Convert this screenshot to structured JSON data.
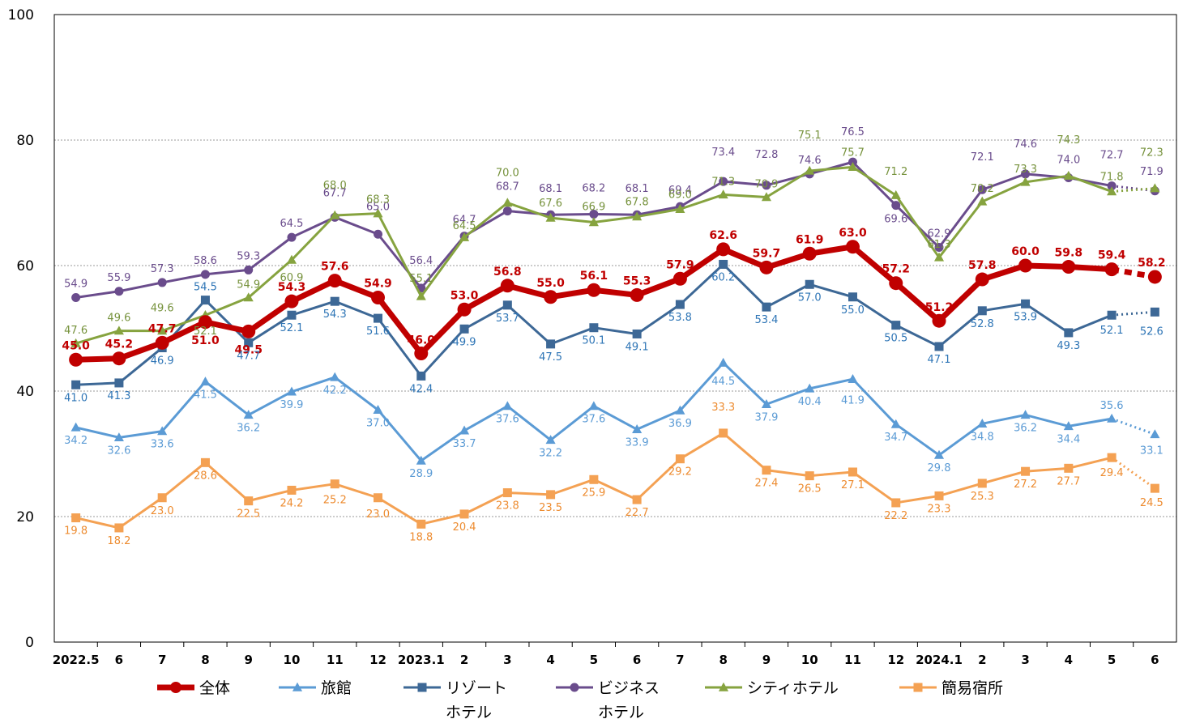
{
  "chart_data": {
    "type": "line",
    "title": "",
    "xlabel": "",
    "ylabel": "",
    "ylim": [
      0,
      100
    ],
    "yticks": [
      0,
      20,
      40,
      60,
      80,
      100
    ],
    "grid": "horizontal-dotted",
    "legend_position": "bottom",
    "categories": [
      "2022.5",
      "6",
      "7",
      "8",
      "9",
      "10",
      "11",
      "12",
      "2023.1",
      "2",
      "3",
      "4",
      "5",
      "6",
      "7",
      "8",
      "9",
      "10",
      "11",
      "12",
      "2024.1",
      "2",
      "3",
      "4",
      "5",
      "6"
    ],
    "series": [
      {
        "id": "s-all",
        "name": "全体",
        "color": "#c00000",
        "marker": "circle",
        "emphasis": true,
        "values": [
          45.0,
          45.2,
          47.7,
          51.0,
          49.5,
          54.3,
          57.6,
          54.9,
          46.0,
          53.0,
          56.8,
          55.0,
          56.1,
          55.3,
          57.9,
          62.6,
          59.7,
          61.9,
          63.0,
          57.2,
          51.2,
          57.8,
          60.0,
          59.8,
          59.4,
          58.2
        ],
        "labels": [
          "45.0",
          "45.2",
          "47.7",
          "51.0",
          "49.5",
          "54.3",
          "57.6",
          "54.9",
          "46.0",
          "53.0",
          "56.8",
          "55.0",
          "56.1",
          "55.3",
          "57.9",
          "62.6",
          "59.7",
          "61.9",
          "63.0",
          "57.2",
          "51.2",
          "57.8",
          "60.0",
          "59.8",
          "59.4",
          "58.2"
        ]
      },
      {
        "id": "s-ryokan",
        "name": "旅館",
        "color": "#5b9bd5",
        "marker": "triangle",
        "values": [
          34.2,
          32.6,
          33.6,
          41.5,
          36.2,
          39.9,
          42.2,
          37.0,
          28.9,
          33.7,
          37.6,
          32.2,
          37.6,
          33.9,
          36.9,
          44.5,
          37.9,
          40.4,
          41.9,
          34.7,
          29.8,
          34.8,
          36.2,
          34.4,
          35.6,
          33.1
        ],
        "labels": [
          "34.2",
          "32.6",
          "33.6",
          "41.5",
          "36.2",
          "39.9",
          "42.2",
          "37.0",
          "28.9",
          "33.7",
          "37.6",
          "32.2",
          "37.6",
          "33.9",
          "36.9",
          "44.5",
          "37.9",
          "40.4",
          "41.9",
          "34.7",
          "29.8",
          "34.8",
          "36.2",
          "34.4",
          "35.6",
          "33.1"
        ]
      },
      {
        "id": "s-resort",
        "name": "リゾート ホテル",
        "name_lines": [
          "リゾート",
          "ホテル"
        ],
        "color": "#3d6896",
        "label_color": "#2e75b6",
        "marker": "square",
        "values": [
          41.0,
          41.3,
          46.9,
          54.5,
          47.7,
          52.1,
          54.3,
          51.6,
          42.4,
          49.9,
          53.7,
          47.5,
          50.1,
          49.1,
          53.8,
          60.2,
          53.4,
          57.0,
          55.0,
          50.5,
          47.1,
          52.8,
          53.9,
          49.3,
          52.1,
          52.6
        ],
        "labels": [
          "41.0",
          "41.3",
          "46.9",
          "54.5",
          "47.7",
          "52.1",
          "54.3",
          "51.6",
          "42.4",
          "49.9",
          "53.7",
          "47.5",
          "50.1",
          "49.1",
          "53.8",
          "60.2",
          "53.4",
          "57.0",
          "55.0",
          "50.5",
          "47.1",
          "52.8",
          "53.9",
          "49.3",
          "52.1",
          "52.6"
        ]
      },
      {
        "id": "s-business",
        "name": "ビジネス ホテル",
        "name_lines": [
          "ビジネス",
          "ホテル"
        ],
        "color": "#6a4c8c",
        "label_color": "#6a4c8c",
        "marker": "circle",
        "values": [
          54.9,
          55.9,
          57.3,
          58.6,
          59.3,
          64.5,
          67.7,
          65.0,
          56.4,
          64.7,
          68.7,
          68.1,
          68.2,
          68.1,
          69.4,
          73.4,
          72.8,
          74.6,
          76.5,
          69.6,
          62.9,
          72.1,
          74.6,
          74.0,
          72.7,
          71.9
        ],
        "labels": [
          "54.9",
          "55.9",
          "57.3",
          "58.6",
          "59.3",
          "64.5",
          "67.7",
          "65.0",
          "56.4",
          "64.7",
          "68.7",
          "68.1",
          "68.2",
          "68.1",
          "69.4",
          "73.4",
          "72.8",
          "74.6",
          "76.5",
          "69.6",
          "62.9",
          "72.1",
          "74.6",
          "74.0",
          "72.7",
          "71.9"
        ]
      },
      {
        "id": "s-city",
        "name": "シティホテル",
        "color": "#86a33f",
        "label_color": "#76923c",
        "marker": "triangle",
        "values": [
          47.6,
          49.6,
          49.6,
          52.1,
          54.9,
          60.9,
          68.0,
          68.3,
          55.1,
          64.5,
          70.0,
          67.6,
          66.9,
          67.8,
          69.0,
          71.3,
          70.9,
          75.1,
          75.7,
          71.2,
          61.3,
          70.2,
          73.3,
          74.3,
          71.8,
          72.3
        ],
        "labels": [
          "47.6",
          "49.6",
          "49.6",
          "52.1",
          "54.9",
          "60.9",
          "68.0",
          "68.3",
          "55.1",
          "64.5",
          "70.0",
          "67.6",
          "66.9",
          "67.8",
          "69.0",
          "71.3",
          "70.9",
          "75.1",
          "75.7",
          "71.2",
          "61.3",
          "70.2",
          "73.3",
          "74.3",
          "71.8",
          "72.3"
        ]
      },
      {
        "id": "s-simple",
        "name": "簡易宿所",
        "color": "#f4a153",
        "label_color": "#ed8b2f",
        "marker": "square",
        "values": [
          19.8,
          18.2,
          23.0,
          28.6,
          22.5,
          24.2,
          25.2,
          23.0,
          18.8,
          20.4,
          23.8,
          23.5,
          25.9,
          22.7,
          29.2,
          33.3,
          27.4,
          26.5,
          27.1,
          22.2,
          23.3,
          25.3,
          27.2,
          27.7,
          29.4,
          24.5
        ],
        "labels": [
          "19.8",
          "18.2",
          "23.0",
          "28.6",
          "22.5",
          "24.2",
          "25.2",
          "23.0",
          "18.8",
          "20.4",
          "23.8",
          "23.5",
          "25.9",
          "22.7",
          "29.2",
          "33.3",
          "27.4",
          "26.5",
          "27.1",
          "22.2",
          "23.3",
          "25.3",
          "27.2",
          "27.7",
          "29.4",
          "24.5"
        ]
      }
    ],
    "last_segment_style": "dotted"
  }
}
